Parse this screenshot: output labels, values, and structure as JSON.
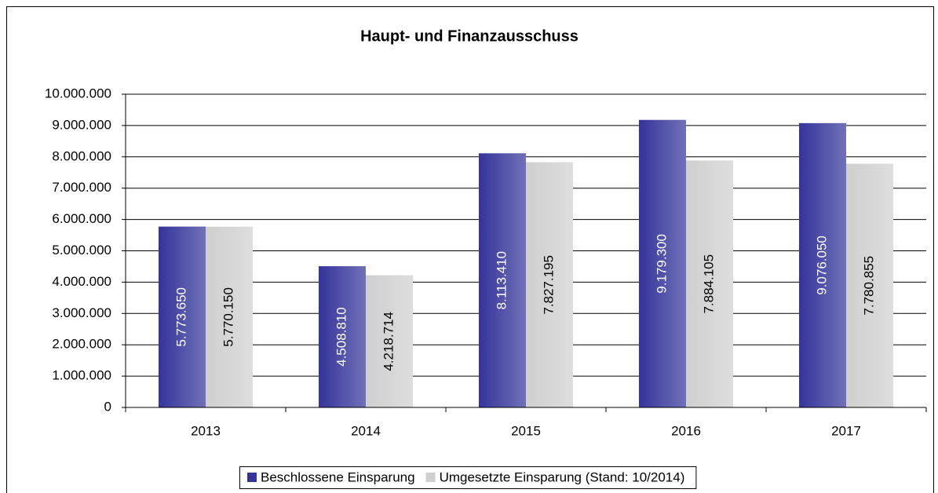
{
  "chart_data": {
    "type": "bar",
    "title": "Haupt- und Finanzausschuss",
    "categories": [
      "2013",
      "2014",
      "2015",
      "2016",
      "2017"
    ],
    "series": [
      {
        "name": "Beschlossene Einsparung",
        "color": "#34349a",
        "values": [
          5773650,
          4508810,
          8113410,
          9179300,
          9076050
        ],
        "value_labels": [
          "5.773.650",
          "4.508.810",
          "8.113.410",
          "9.179.300",
          "9.076.050"
        ]
      },
      {
        "name": "Umgesetzte Einsparung (Stand: 10/2014)",
        "color": "#cfcfcf",
        "values": [
          5770150,
          4218714,
          7827195,
          7884105,
          7780855
        ],
        "value_labels": [
          "5.770.150",
          "4.218.714",
          "7.827.195",
          "7.884.105",
          "7.780.855"
        ]
      }
    ],
    "ylim": [
      0,
      10000000
    ],
    "yticks": [
      0,
      {
        "value": 1000000,
        "label": "1.000.000"
      },
      {
        "value": 2000000,
        "label": "2.000.000"
      },
      {
        "value": 3000000,
        "label": "3.000.000"
      },
      {
        "value": 4000000,
        "label": "4.000.000"
      },
      {
        "value": 5000000,
        "label": "5.000.000"
      },
      {
        "value": 6000000,
        "label": "6.000.000"
      },
      {
        "value": 7000000,
        "label": "7.000.000"
      },
      {
        "value": 8000000,
        "label": "8.000.000"
      },
      {
        "value": 9000000,
        "label": "9.000.000"
      },
      {
        "value": 10000000,
        "label": "10.000.000"
      }
    ],
    "grid": true,
    "legend": "bottom"
  }
}
